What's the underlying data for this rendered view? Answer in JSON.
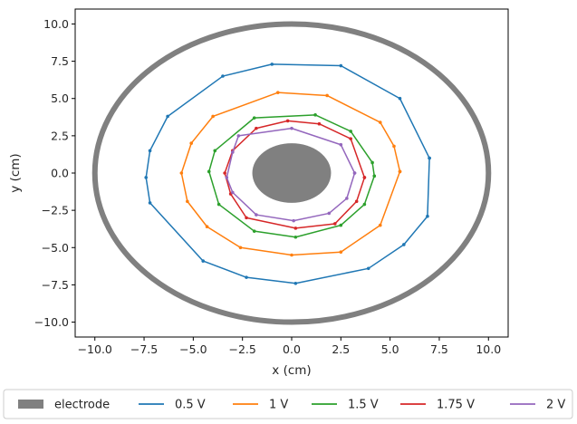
{
  "chart_data": {
    "type": "line",
    "xlabel": "x (cm)",
    "ylabel": "y (cm)",
    "xlim": [
      -11,
      11
    ],
    "ylim": [
      -11,
      11
    ],
    "xticks": [
      -10,
      -7.5,
      -5,
      -2.5,
      0,
      2.5,
      5,
      7.5,
      10
    ],
    "yticks": [
      -10,
      -7.5,
      -5,
      -2.5,
      0,
      2.5,
      5,
      7.5,
      10
    ],
    "xtick_labels": [
      "−10.0",
      "−7.5",
      "−5.0",
      "−2.5",
      "0.0",
      "2.5",
      "5.0",
      "7.5",
      "10.0"
    ],
    "ytick_labels": [
      "−10.0",
      "−7.5",
      "−5.0",
      "−2.5",
      "0.0",
      "2.5",
      "5.0",
      "7.5",
      "10.0"
    ],
    "grid": false,
    "legend_position": "bottom",
    "legend_entries": [
      "electrode",
      "0.5 V",
      "1 V",
      "1.5 V",
      "1.75 V",
      "2 V"
    ],
    "electrodes": [
      {
        "name": "electrode",
        "shape": "ring",
        "center": [
          0,
          0
        ],
        "rx": 10,
        "ry": 10,
        "color": "#808080"
      },
      {
        "name": "electrode",
        "shape": "disk",
        "center": [
          0,
          0
        ],
        "rx": 2,
        "ry": 2,
        "color": "#808080"
      }
    ],
    "series": [
      {
        "name": "0.5 V",
        "color": "#1f77b4",
        "points": [
          [
            7.0,
            1.0
          ],
          [
            5.5,
            5.0
          ],
          [
            2.5,
            7.2
          ],
          [
            -1.0,
            7.3
          ],
          [
            -3.5,
            6.5
          ],
          [
            -6.3,
            3.8
          ],
          [
            -7.2,
            1.5
          ],
          [
            -7.4,
            -0.3
          ],
          [
            -7.2,
            -2.0
          ],
          [
            -4.5,
            -5.9
          ],
          [
            -2.3,
            -7.0
          ],
          [
            0.2,
            -7.4
          ],
          [
            3.9,
            -6.4
          ],
          [
            5.7,
            -4.8
          ],
          [
            6.9,
            -2.9
          ],
          [
            7.0,
            1.0
          ]
        ]
      },
      {
        "name": "1 V",
        "color": "#ff7f0e",
        "points": [
          [
            5.5,
            0.1
          ],
          [
            5.2,
            1.8
          ],
          [
            4.5,
            3.4
          ],
          [
            1.8,
            5.2
          ],
          [
            -0.7,
            5.4
          ],
          [
            -4.0,
            3.8
          ],
          [
            -5.1,
            2.0
          ],
          [
            -5.6,
            0.0
          ],
          [
            -5.3,
            -1.9
          ],
          [
            -4.3,
            -3.6
          ],
          [
            -2.6,
            -5.0
          ],
          [
            0.0,
            -5.5
          ],
          [
            2.5,
            -5.3
          ],
          [
            4.5,
            -3.5
          ],
          [
            5.5,
            0.1
          ]
        ]
      },
      {
        "name": "1.5 V",
        "color": "#2ca02c",
        "points": [
          [
            4.2,
            -0.2
          ],
          [
            4.1,
            0.7
          ],
          [
            3.0,
            2.8
          ],
          [
            1.2,
            3.9
          ],
          [
            -1.9,
            3.7
          ],
          [
            -3.9,
            1.5
          ],
          [
            -4.2,
            0.1
          ],
          [
            -3.7,
            -2.1
          ],
          [
            -1.9,
            -3.9
          ],
          [
            0.2,
            -4.3
          ],
          [
            2.5,
            -3.5
          ],
          [
            3.7,
            -2.1
          ],
          [
            4.2,
            -0.2
          ]
        ]
      },
      {
        "name": "1.75 V",
        "color": "#d62728",
        "points": [
          [
            3.7,
            -0.3
          ],
          [
            3.0,
            2.3
          ],
          [
            1.4,
            3.3
          ],
          [
            -0.2,
            3.5
          ],
          [
            -1.8,
            3.0
          ],
          [
            -3.0,
            1.5
          ],
          [
            -3.4,
            0.0
          ],
          [
            -3.1,
            -1.4
          ],
          [
            -2.3,
            -3.0
          ],
          [
            0.2,
            -3.7
          ],
          [
            2.2,
            -3.4
          ],
          [
            3.3,
            -1.9
          ],
          [
            3.7,
            -0.3
          ]
        ]
      },
      {
        "name": "2 V",
        "color": "#9467bd",
        "points": [
          [
            3.2,
            0.0
          ],
          [
            2.5,
            1.9
          ],
          [
            0.0,
            3.0
          ],
          [
            -2.7,
            2.5
          ],
          [
            -3.0,
            1.4
          ],
          [
            -3.3,
            -0.3
          ],
          [
            -3.0,
            -1.3
          ],
          [
            -1.8,
            -2.8
          ],
          [
            0.1,
            -3.2
          ],
          [
            1.9,
            -2.7
          ],
          [
            2.8,
            -1.7
          ],
          [
            3.2,
            0.0
          ]
        ]
      }
    ]
  }
}
